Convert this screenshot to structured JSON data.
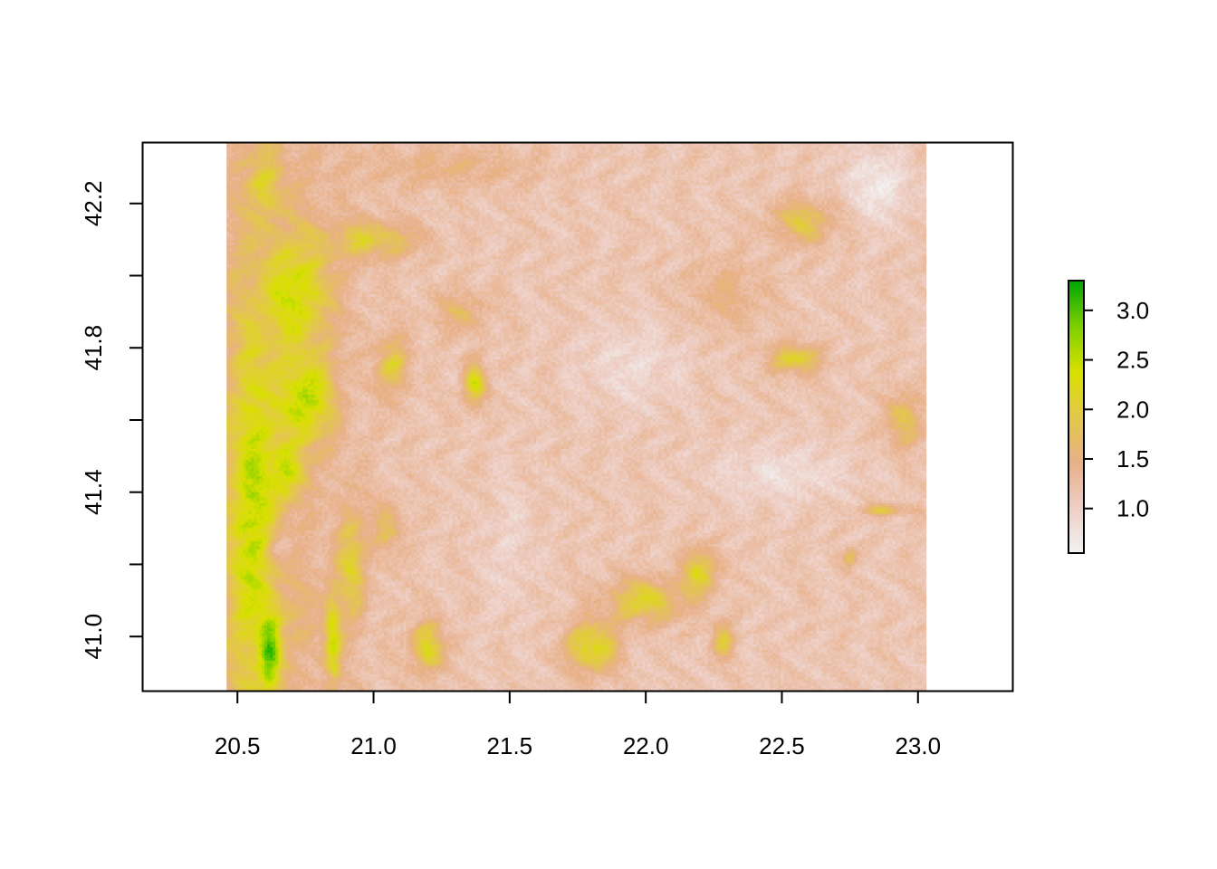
{
  "chart_data": {
    "type": "heatmap",
    "title": "",
    "xlabel": "",
    "ylabel": "",
    "xlim": [
      20.15,
      23.35
    ],
    "ylim": [
      40.85,
      42.37
    ],
    "raster_extent": {
      "x": [
        20.46,
        23.03
      ],
      "y": [
        40.85,
        42.37
      ]
    },
    "x_ticks": [
      20.5,
      21.0,
      21.5,
      22.0,
      22.5,
      23.0
    ],
    "x_tick_labels": [
      "20.5",
      "21.0",
      "21.5",
      "22.0",
      "22.5",
      "23.0"
    ],
    "y_ticks": [
      41.0,
      41.2,
      41.4,
      41.6,
      41.8,
      42.0,
      42.2
    ],
    "y_tick_labels": [
      "41.0",
      "41.4",
      "41.8",
      "42.2"
    ],
    "colorbar": {
      "range": [
        0.55,
        3.3
      ],
      "ticks": [
        1.0,
        1.5,
        2.0,
        2.5,
        3.0
      ],
      "tick_labels": [
        "1.0",
        "1.5",
        "2.0",
        "2.5",
        "3.0"
      ],
      "colors": [
        "#f2f2f2",
        "#eecfc6",
        "#e8b088",
        "#e3c84a",
        "#d9e000",
        "#7ed000",
        "#00a600"
      ]
    },
    "base_value": 1.15,
    "features": [
      {
        "x": 20.55,
        "y": 41.35,
        "sx": 0.09,
        "sy": 0.55,
        "value": 2.4
      },
      {
        "x": 20.6,
        "y": 42.25,
        "sx": 0.07,
        "sy": 0.1,
        "value": 1.8
      },
      {
        "x": 20.72,
        "y": 41.95,
        "sx": 0.12,
        "sy": 0.16,
        "value": 2.3
      },
      {
        "x": 20.75,
        "y": 41.65,
        "sx": 0.1,
        "sy": 0.12,
        "value": 2.5
      },
      {
        "x": 20.68,
        "y": 41.45,
        "sx": 0.06,
        "sy": 0.08,
        "value": 2.2
      },
      {
        "x": 20.62,
        "y": 40.95,
        "sx": 0.04,
        "sy": 0.12,
        "value": 2.5
      },
      {
        "x": 20.85,
        "y": 41.0,
        "sx": 0.03,
        "sy": 0.13,
        "value": 2.4
      },
      {
        "x": 21.0,
        "y": 42.1,
        "sx": 0.16,
        "sy": 0.05,
        "value": 2.0
      },
      {
        "x": 21.07,
        "y": 41.75,
        "sx": 0.06,
        "sy": 0.08,
        "value": 2.0
      },
      {
        "x": 20.92,
        "y": 41.2,
        "sx": 0.05,
        "sy": 0.15,
        "value": 2.0
      },
      {
        "x": 21.2,
        "y": 40.97,
        "sx": 0.06,
        "sy": 0.07,
        "value": 2.3
      },
      {
        "x": 21.37,
        "y": 41.7,
        "sx": 0.04,
        "sy": 0.06,
        "value": 2.4
      },
      {
        "x": 21.32,
        "y": 41.9,
        "sx": 0.1,
        "sy": 0.06,
        "value": 1.65
      },
      {
        "x": 21.05,
        "y": 41.3,
        "sx": 0.06,
        "sy": 0.07,
        "value": 1.7
      },
      {
        "x": 21.8,
        "y": 40.97,
        "sx": 0.09,
        "sy": 0.07,
        "value": 2.4
      },
      {
        "x": 22.0,
        "y": 41.1,
        "sx": 0.14,
        "sy": 0.06,
        "value": 2.2
      },
      {
        "x": 22.2,
        "y": 41.18,
        "sx": 0.06,
        "sy": 0.06,
        "value": 2.3
      },
      {
        "x": 22.28,
        "y": 40.99,
        "sx": 0.04,
        "sy": 0.05,
        "value": 2.0
      },
      {
        "x": 22.55,
        "y": 41.77,
        "sx": 0.09,
        "sy": 0.04,
        "value": 2.2
      },
      {
        "x": 22.58,
        "y": 42.15,
        "sx": 0.12,
        "sy": 0.06,
        "value": 1.95
      },
      {
        "x": 22.95,
        "y": 41.6,
        "sx": 0.07,
        "sy": 0.08,
        "value": 1.9
      },
      {
        "x": 22.88,
        "y": 41.35,
        "sx": 0.1,
        "sy": 0.015,
        "value": 1.9
      },
      {
        "x": 22.75,
        "y": 41.22,
        "sx": 0.025,
        "sy": 0.025,
        "value": 1.9
      },
      {
        "x": 22.85,
        "y": 42.25,
        "sx": 0.12,
        "sy": 0.1,
        "value": 0.65
      },
      {
        "x": 22.5,
        "y": 41.45,
        "sx": 0.25,
        "sy": 0.08,
        "value": 0.8
      },
      {
        "x": 21.95,
        "y": 41.75,
        "sx": 0.2,
        "sy": 0.12,
        "value": 0.85
      },
      {
        "x": 21.5,
        "y": 41.25,
        "sx": 0.1,
        "sy": 0.2,
        "value": 0.95
      },
      {
        "x": 20.72,
        "y": 41.05,
        "sx": 0.06,
        "sy": 0.1,
        "value": 1.45
      },
      {
        "x": 20.65,
        "y": 41.25,
        "sx": 0.05,
        "sy": 0.04,
        "value": 0.75
      },
      {
        "x": 21.3,
        "y": 42.3,
        "sx": 0.3,
        "sy": 0.06,
        "value": 1.5
      },
      {
        "x": 22.3,
        "y": 41.95,
        "sx": 0.15,
        "sy": 0.1,
        "value": 1.5
      }
    ]
  }
}
